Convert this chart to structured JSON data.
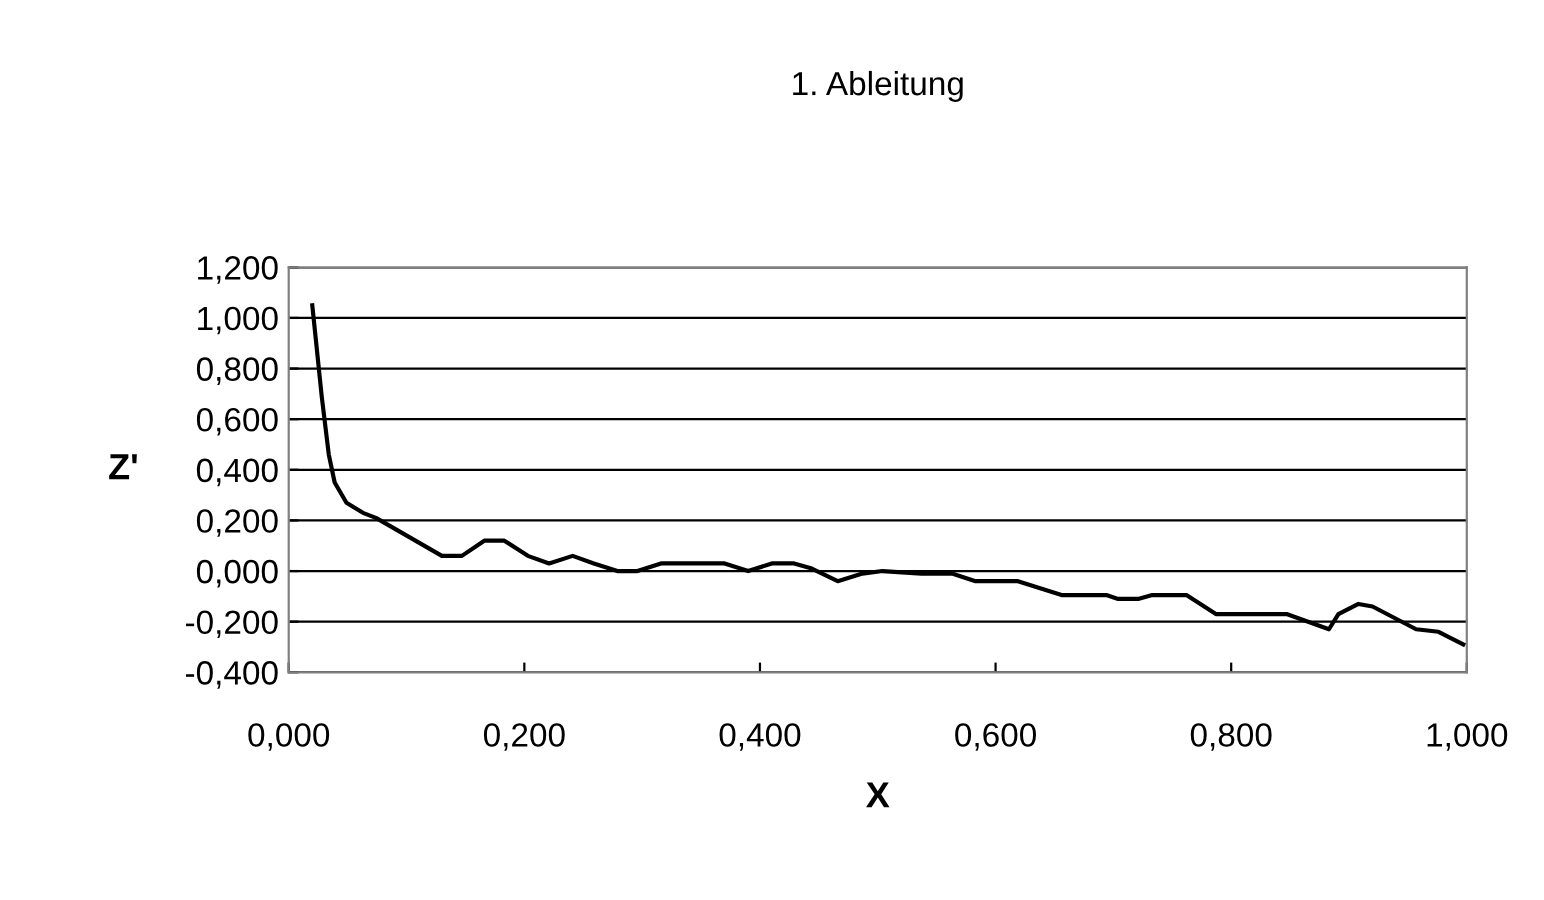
{
  "chart_data": {
    "type": "line",
    "title": "1. Ableitung",
    "xlabel": "X",
    "ylabel": "Z'",
    "x": [
      0.02,
      0.028,
      0.034,
      0.039,
      0.049,
      0.063,
      0.074,
      0.13,
      0.147,
      0.166,
      0.183,
      0.203,
      0.221,
      0.241,
      0.259,
      0.279,
      0.296,
      0.316,
      0.37,
      0.39,
      0.41,
      0.429,
      0.444,
      0.466,
      0.487,
      0.504,
      0.537,
      0.563,
      0.583,
      0.619,
      0.656,
      0.694,
      0.704,
      0.721,
      0.733,
      0.762,
      0.787,
      0.847,
      0.883,
      0.891,
      0.908,
      0.92,
      0.957,
      0.976,
      0.997
    ],
    "series": [
      {
        "color": "#000000",
        "values": [
          1.05,
          0.69,
          0.46,
          0.35,
          0.27,
          0.23,
          0.21,
          0.06,
          0.06,
          0.12,
          0.12,
          0.06,
          0.03,
          0.06,
          0.03,
          0,
          0,
          0.03,
          0.03,
          0,
          0.03,
          0.03,
          0.01,
          -0.04,
          -0.01,
          0,
          -0.01,
          -0.01,
          -0.04,
          -0.04,
          -0.095,
          -0.095,
          -0.11,
          -0.11,
          -0.095,
          -0.095,
          -0.17,
          -0.17,
          -0.23,
          -0.17,
          -0.13,
          -0.14,
          -0.23,
          -0.24,
          -0.29
        ]
      }
    ],
    "xlim": [
      0,
      1
    ],
    "ylim": [
      -0.4,
      1.2
    ],
    "xticks": [
      {
        "value": 0,
        "label": "0,000"
      },
      {
        "value": 0.2,
        "label": "0,200"
      },
      {
        "value": 0.4,
        "label": "0,400"
      },
      {
        "value": 0.6,
        "label": "0,600"
      },
      {
        "value": 0.8,
        "label": "0,800"
      },
      {
        "value": 1,
        "label": "1,000"
      }
    ],
    "yticks": [
      {
        "value": -0.4,
        "label": "-0,400"
      },
      {
        "value": -0.2,
        "label": "-0,200"
      },
      {
        "value": 0,
        "label": "0,000"
      },
      {
        "value": 0.2,
        "label": "0,200"
      },
      {
        "value": 0.4,
        "label": "0,400"
      },
      {
        "value": 0.6,
        "label": "0,600"
      },
      {
        "value": 0.8,
        "label": "0,800"
      },
      {
        "value": 1,
        "label": "1,000"
      },
      {
        "value": 1.2,
        "label": "1,200"
      }
    ],
    "grid": "y",
    "marker": "none",
    "line_style": "solid"
  }
}
